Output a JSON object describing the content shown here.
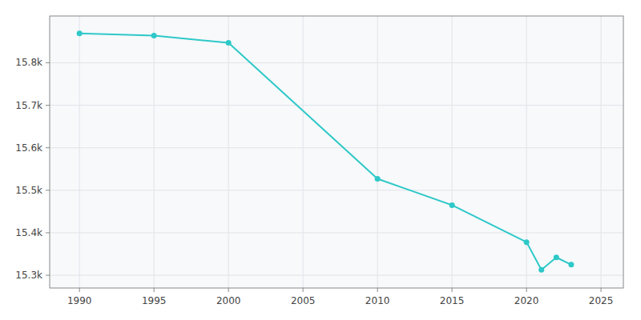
{
  "chart_data": {
    "type": "line",
    "x": [
      1990,
      1995,
      2000,
      2010,
      2015,
      2020,
      2021,
      2022,
      2023
    ],
    "values": [
      15869,
      15864,
      15847,
      15527,
      15465,
      15378,
      15313,
      15342,
      15325
    ],
    "color": "#2ec8c8",
    "marker": "circle",
    "xlim": [
      1988,
      2026.5
    ],
    "ylim": [
      15270,
      15910
    ],
    "xticks": [
      1990,
      1995,
      2000,
      2005,
      2010,
      2015,
      2020,
      2025
    ],
    "yticks": [
      {
        "value": 15300,
        "label": "15.3k"
      },
      {
        "value": 15400,
        "label": "15.4k"
      },
      {
        "value": 15500,
        "label": "15.5k"
      },
      {
        "value": 15600,
        "label": "15.6k"
      },
      {
        "value": 15700,
        "label": "15.7k"
      },
      {
        "value": 15800,
        "label": "15.8k"
      }
    ],
    "grid": true
  }
}
